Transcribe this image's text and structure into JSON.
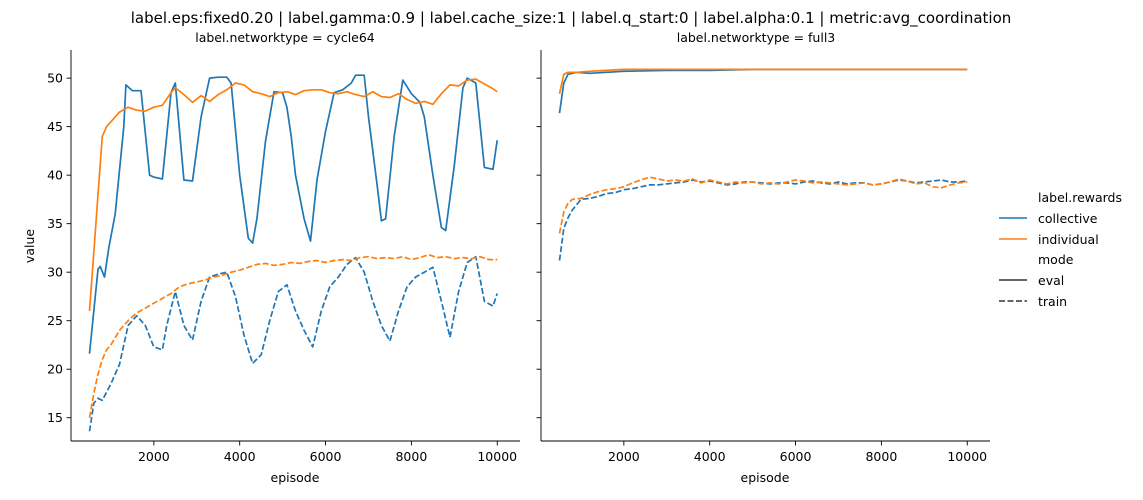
{
  "chart_data": {
    "type": "line",
    "title": "label.eps:fixed0.20 | label.gamma:0.9 | label.cache_size:1 | label.q_start:0 | label.alpha:0.1 | metric:avg_coordination",
    "xlabel": "episode",
    "ylabel": "value",
    "xlim": [
      70,
      10530
    ],
    "ylim": [
      12.6,
      52.9
    ],
    "xticks": [
      2000,
      4000,
      6000,
      8000,
      10000
    ],
    "yticks": [
      15,
      20,
      25,
      30,
      35,
      40,
      45,
      50
    ],
    "grid": false,
    "legend": {
      "placement": "right",
      "hue_title": "label.rewards",
      "style_title": "mode",
      "entries": [
        {
          "name": "collective",
          "color": "#1f77b4",
          "dash": "solid"
        },
        {
          "name": "individual",
          "color": "#ff7f0e",
          "dash": "solid"
        },
        {
          "name": "eval",
          "color": "#333333",
          "dash": "solid"
        },
        {
          "name": "train",
          "color": "#333333",
          "dash": "dashed"
        }
      ]
    },
    "panels": [
      {
        "title": "label.networktype = cycle64",
        "series": [
          {
            "name": "collective",
            "mode": "eval",
            "color": "#1f77b4",
            "dashed": false,
            "x": [
              500,
              700,
              750,
              850,
              950,
              1100,
              1300,
              1350,
              1500,
              1700,
              1900,
              2000,
              2200,
              2400,
              2500,
              2700,
              2900,
              3100,
              3300,
              3500,
              3700,
              3800,
              4000,
              4200,
              4300,
              4400,
              4600,
              4800,
              5000,
              5100,
              5200,
              5300,
              5500,
              5650,
              5800,
              6000,
              6200,
              6400,
              6600,
              6700,
              6900,
              7000,
              7200,
              7300,
              7400,
              7600,
              7800,
              8000,
              8200,
              8300,
              8500,
              8700,
              8800,
              9000,
              9200,
              9300,
              9500,
              9700,
              9900,
              10000
            ],
            "y": [
              21.6,
              30.3,
              30.6,
              29.5,
              32.5,
              36,
              45,
              49.3,
              48.7,
              48.7,
              40,
              39.8,
              39.6,
              48.5,
              49.5,
              39.5,
              39.4,
              46,
              50,
              50.1,
              50.1,
              49.5,
              40,
              33.5,
              33,
              35.5,
              43.5,
              48.6,
              48.5,
              47,
              44,
              40,
              35.5,
              33.2,
              39.5,
              44.5,
              48.5,
              48.8,
              49.5,
              50.3,
              50.3,
              46,
              39,
              35.3,
              35.5,
              44,
              49.8,
              48.4,
              47.5,
              46,
              40,
              34.6,
              34.3,
              41,
              49,
              50,
              49.5,
              40.8,
              40.6,
              43.6
            ]
          },
          {
            "name": "individual",
            "mode": "eval",
            "color": "#ff7f0e",
            "dashed": false,
            "x": [
              500,
              600,
              700,
              800,
              900,
              1000,
              1200,
              1400,
              1600,
              1800,
              2000,
              2200,
              2400,
              2500,
              2700,
              2900,
              3100,
              3300,
              3500,
              3700,
              3900,
              4100,
              4300,
              4500,
              4700,
              4900,
              5100,
              5300,
              5500,
              5700,
              5900,
              6100,
              6300,
              6500,
              6700,
              6900,
              7100,
              7300,
              7500,
              7700,
              7900,
              8100,
              8300,
              8500,
              8700,
              8900,
              9100,
              9300,
              9500,
              9700,
              9900,
              10000
            ],
            "y": [
              26,
              32,
              38,
              44,
              45,
              45.5,
              46.5,
              47,
              46.7,
              46.6,
              47,
              47.2,
              48.5,
              49,
              48.3,
              47.5,
              48.2,
              47.6,
              48.3,
              48.8,
              49.5,
              49.3,
              48.6,
              48.4,
              48.1,
              48.5,
              48.6,
              48.3,
              48.7,
              48.8,
              48.8,
              48.5,
              48.4,
              48.6,
              48.3,
              48.1,
              48.6,
              48.1,
              48,
              48.4,
              47.8,
              47.4,
              47.6,
              47.3,
              48.4,
              49.3,
              49.2,
              49.8,
              49.9,
              49.4,
              48.9,
              48.6
            ]
          },
          {
            "name": "collective",
            "mode": "train",
            "color": "#1f77b4",
            "dashed": true,
            "x": [
              500,
              600,
              700,
              800,
              1000,
              1200,
              1400,
              1600,
              1800,
              2000,
              2200,
              2300,
              2500,
              2700,
              2900,
              3100,
              3300,
              3500,
              3700,
              3900,
              4100,
              4300,
              4500,
              4700,
              4900,
              5100,
              5300,
              5500,
              5700,
              5900,
              6100,
              6300,
              6500,
              6700,
              6900,
              7100,
              7300,
              7500,
              7700,
              7900,
              8100,
              8300,
              8500,
              8700,
              8900,
              9100,
              9300,
              9500,
              9700,
              9900,
              10000
            ],
            "y": [
              13.6,
              16.5,
              17,
              16.8,
              18.5,
              20.5,
              24.5,
              25.5,
              24.5,
              22.3,
              22,
              24.5,
              28,
              24.5,
              23,
              27,
              29.5,
              29.8,
              30,
              27.5,
              23.5,
              20.6,
              21.5,
              25,
              28,
              28.7,
              26,
              24,
              22.3,
              26,
              28.5,
              29.5,
              30.8,
              31.5,
              30,
              27,
              24.5,
              22.9,
              26,
              28.5,
              29.5,
              30,
              30.5,
              27,
              23.3,
              28,
              31,
              31.6,
              27,
              26.5,
              27.8
            ]
          },
          {
            "name": "individual",
            "mode": "train",
            "color": "#ff7f0e",
            "dashed": true,
            "x": [
              500,
              600,
              700,
              800,
              900,
              1000,
              1200,
              1400,
              1600,
              1800,
              2000,
              2200,
              2400,
              2600,
              2800,
              3000,
              3200,
              3400,
              3600,
              3800,
              4000,
              4200,
              4400,
              4600,
              4800,
              5000,
              5200,
              5400,
              5600,
              5800,
              6000,
              6200,
              6400,
              6600,
              6800,
              7000,
              7200,
              7400,
              7600,
              7800,
              8000,
              8200,
              8400,
              8600,
              8800,
              9000,
              9200,
              9400,
              9600,
              9800,
              10000
            ],
            "y": [
              15,
              17.5,
              19.5,
              21,
              22,
              22.5,
              24,
              25,
              25.8,
              26.3,
              26.8,
              27.3,
              27.8,
              28.5,
              28.8,
              29,
              29.2,
              29.5,
              29.7,
              30,
              30.2,
              30.5,
              30.8,
              30.9,
              30.7,
              30.8,
              31,
              30.9,
              31.1,
              31.2,
              31,
              31.2,
              31.3,
              31.2,
              31.5,
              31.6,
              31.4,
              31.5,
              31.4,
              31.6,
              31.3,
              31.5,
              31.8,
              31.5,
              31.6,
              31.4,
              31.5,
              31.4,
              31.6,
              31.3,
              31.3
            ]
          }
        ]
      },
      {
        "title": "label.networktype = full3",
        "series": [
          {
            "name": "collective",
            "mode": "eval",
            "color": "#1f77b4",
            "dashed": false,
            "x": [
              500,
              600,
              700,
              900,
              1200,
              1600,
              2000,
              3000,
              4000,
              5000,
              6000,
              7000,
              8000,
              9000,
              10000
            ],
            "y": [
              46.4,
              49.5,
              50.4,
              50.6,
              50.5,
              50.6,
              50.7,
              50.8,
              50.8,
              50.9,
              50.9,
              50.9,
              50.9,
              50.9,
              50.9
            ]
          },
          {
            "name": "individual",
            "mode": "eval",
            "color": "#ff7f0e",
            "dashed": false,
            "x": [
              500,
              600,
              700,
              900,
              1200,
              1600,
              2000,
              3000,
              4000,
              5000,
              6000,
              7000,
              8000,
              9000,
              10000
            ],
            "y": [
              48.4,
              50.4,
              50.6,
              50.6,
              50.7,
              50.8,
              50.9,
              50.9,
              50.9,
              50.9,
              50.9,
              50.9,
              50.9,
              50.9,
              50.9
            ]
          },
          {
            "name": "collective",
            "mode": "train",
            "color": "#1f77b4",
            "dashed": true,
            "x": [
              500,
              600,
              700,
              800,
              1000,
              1200,
              1400,
              1600,
              1800,
              2000,
              2200,
              2400,
              2600,
              2800,
              3000,
              3200,
              3400,
              3600,
              3800,
              4000,
              4200,
              4400,
              4600,
              4800,
              5000,
              5200,
              5400,
              5600,
              5800,
              6000,
              6200,
              6400,
              6600,
              6800,
              7000,
              7200,
              7400,
              7600,
              7800,
              8000,
              8200,
              8400,
              8600,
              8800,
              9000,
              9200,
              9400,
              9600,
              9800,
              10000
            ],
            "y": [
              31.2,
              34.5,
              35.6,
              36.4,
              37.5,
              37.6,
              37.8,
              38.1,
              38.2,
              38.5,
              38.6,
              38.8,
              39,
              39,
              39.1,
              39.2,
              39.3,
              39.5,
              39.3,
              39.4,
              39.2,
              39,
              39.1,
              39.3,
              39.3,
              39.2,
              39.1,
              39.2,
              39.2,
              39.1,
              39.3,
              39.4,
              39.2,
              39.1,
              39.3,
              39.1,
              39.2,
              39.2,
              39.0,
              39.1,
              39.3,
              39.5,
              39.4,
              39.2,
              39.3,
              39.4,
              39.5,
              39.3,
              39.3,
              39.4
            ]
          },
          {
            "name": "individual",
            "mode": "train",
            "color": "#ff7f0e",
            "dashed": true,
            "x": [
              500,
              600,
              700,
              800,
              1000,
              1200,
              1400,
              1600,
              1800,
              2000,
              2200,
              2400,
              2600,
              2800,
              3000,
              3200,
              3400,
              3600,
              3800,
              4000,
              4200,
              4400,
              4600,
              4800,
              5000,
              5200,
              5400,
              5600,
              5800,
              6000,
              6200,
              6400,
              6600,
              6800,
              7000,
              7200,
              7400,
              7600,
              7800,
              8000,
              8200,
              8400,
              8600,
              8800,
              9000,
              9200,
              9400,
              9600,
              9800,
              10000
            ],
            "y": [
              34,
              36.2,
              37.1,
              37.5,
              37.6,
              38,
              38.3,
              38.5,
              38.6,
              38.8,
              39.2,
              39.5,
              39.8,
              39.6,
              39.4,
              39.5,
              39.4,
              39.6,
              39.2,
              39.5,
              39.3,
              39.1,
              39.3,
              39.2,
              39.3,
              39.1,
              39.2,
              39.1,
              39.3,
              39.5,
              39.4,
              39.2,
              39.3,
              39.2,
              39.1,
              39.0,
              39.1,
              39.2,
              39.0,
              39.1,
              39.3,
              39.6,
              39.4,
              39.1,
              39.2,
              38.8,
              38.7,
              39.0,
              39.2,
              39.3
            ]
          }
        ]
      }
    ]
  }
}
